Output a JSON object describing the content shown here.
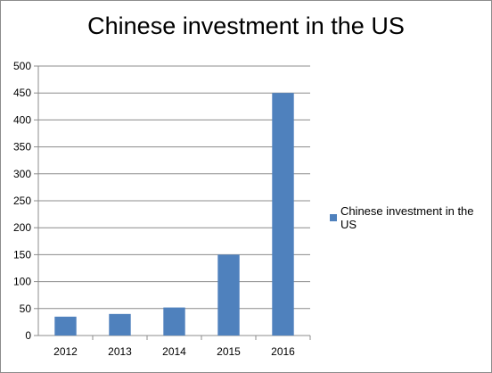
{
  "chart_data": {
    "type": "bar",
    "title": "Chinese investment in the US",
    "categories": [
      "2012",
      "2013",
      "2014",
      "2015",
      "2016"
    ],
    "series": [
      {
        "name": "Chinese investment in the US",
        "values": [
          35,
          40,
          52,
          150,
          450
        ],
        "color": "#4f81bd"
      }
    ],
    "ylim": [
      0,
      500
    ],
    "yticks": [
      0,
      50,
      100,
      150,
      200,
      250,
      300,
      350,
      400,
      450,
      500
    ],
    "grid": true,
    "legend_position": "right",
    "gridline_color": "#8c8c8c",
    "axis_color": "#8c8c8c"
  }
}
